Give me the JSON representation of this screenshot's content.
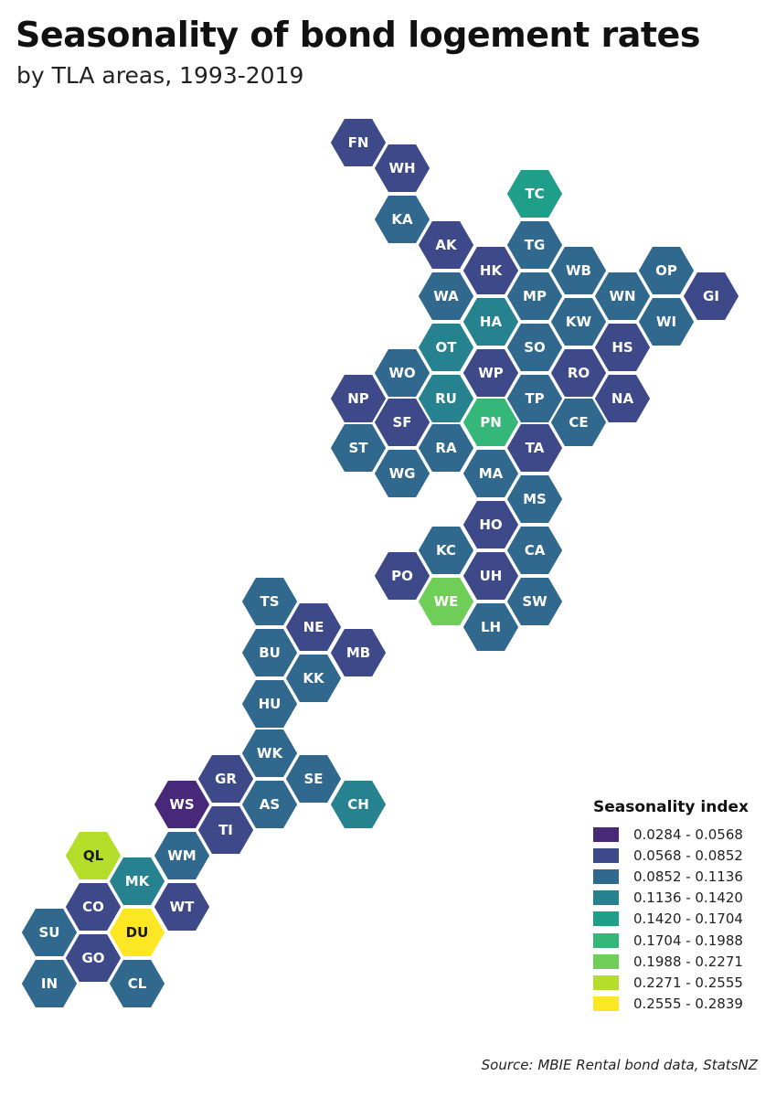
{
  "title": "Seasonality of bond logement rates",
  "subtitle": "by TLA areas, 1993-2019",
  "legend": {
    "title": "Seasonality index",
    "bins": [
      {
        "label": "0.0284 - 0.0568",
        "color": "#482878"
      },
      {
        "label": "0.0568 - 0.0852",
        "color": "#3e4989"
      },
      {
        "label": "0.0852 - 0.1136",
        "color": "#31688e"
      },
      {
        "label": "0.1136 - 0.1420",
        "color": "#26828e"
      },
      {
        "label": "0.1420 - 0.1704",
        "color": "#1f9e89"
      },
      {
        "label": "0.1704 - 0.1988",
        "color": "#35b779"
      },
      {
        "label": "0.1988 - 0.2271",
        "color": "#6ece58"
      },
      {
        "label": "0.2271 - 0.2555",
        "color": "#b5de2b"
      },
      {
        "label": "0.2555 - 0.2839",
        "color": "#fde725"
      }
    ]
  },
  "areas": [
    {
      "code": "FN",
      "bin": 1
    },
    {
      "code": "WH",
      "bin": 1
    },
    {
      "code": "KA",
      "bin": 2
    },
    {
      "code": "TC",
      "bin": 4
    },
    {
      "code": "AK",
      "bin": 1
    },
    {
      "code": "TG",
      "bin": 2
    },
    {
      "code": "HK",
      "bin": 1
    },
    {
      "code": "WB",
      "bin": 2
    },
    {
      "code": "OP",
      "bin": 2
    },
    {
      "code": "WA",
      "bin": 2
    },
    {
      "code": "MP",
      "bin": 2
    },
    {
      "code": "WN",
      "bin": 2
    },
    {
      "code": "GI",
      "bin": 1
    },
    {
      "code": "HA",
      "bin": 3
    },
    {
      "code": "KW",
      "bin": 2
    },
    {
      "code": "WI",
      "bin": 2
    },
    {
      "code": "OT",
      "bin": 3
    },
    {
      "code": "SO",
      "bin": 2
    },
    {
      "code": "HS",
      "bin": 1
    },
    {
      "code": "WO",
      "bin": 2
    },
    {
      "code": "WP",
      "bin": 1
    },
    {
      "code": "RO",
      "bin": 1
    },
    {
      "code": "NP",
      "bin": 1
    },
    {
      "code": "RU",
      "bin": 3
    },
    {
      "code": "TP",
      "bin": 2
    },
    {
      "code": "NA",
      "bin": 1
    },
    {
      "code": "SF",
      "bin": 1
    },
    {
      "code": "PN",
      "bin": 5
    },
    {
      "code": "CE",
      "bin": 2
    },
    {
      "code": "ST",
      "bin": 2
    },
    {
      "code": "RA",
      "bin": 2
    },
    {
      "code": "TA",
      "bin": 1
    },
    {
      "code": "WG",
      "bin": 2
    },
    {
      "code": "MA",
      "bin": 2
    },
    {
      "code": "MS",
      "bin": 2
    },
    {
      "code": "HO",
      "bin": 1
    },
    {
      "code": "KC",
      "bin": 2
    },
    {
      "code": "CA",
      "bin": 2
    },
    {
      "code": "PO",
      "bin": 1
    },
    {
      "code": "UH",
      "bin": 1
    },
    {
      "code": "WE",
      "bin": 6
    },
    {
      "code": "SW",
      "bin": 2
    },
    {
      "code": "LH",
      "bin": 2
    },
    {
      "code": "TS",
      "bin": 2
    },
    {
      "code": "NE",
      "bin": 1
    },
    {
      "code": "BU",
      "bin": 2
    },
    {
      "code": "MB",
      "bin": 1
    },
    {
      "code": "KK",
      "bin": 2
    },
    {
      "code": "HU",
      "bin": 2
    },
    {
      "code": "WK",
      "bin": 2
    },
    {
      "code": "GR",
      "bin": 1
    },
    {
      "code": "SE",
      "bin": 2
    },
    {
      "code": "WS",
      "bin": 0
    },
    {
      "code": "AS",
      "bin": 2
    },
    {
      "code": "CH",
      "bin": 3
    },
    {
      "code": "TI",
      "bin": 1
    },
    {
      "code": "QL",
      "bin": 7
    },
    {
      "code": "WM",
      "bin": 2
    },
    {
      "code": "MK",
      "bin": 3
    },
    {
      "code": "CO",
      "bin": 1
    },
    {
      "code": "WT",
      "bin": 1
    },
    {
      "code": "SU",
      "bin": 2
    },
    {
      "code": "DU",
      "bin": 8
    },
    {
      "code": "GO",
      "bin": 1
    },
    {
      "code": "IN",
      "bin": 2
    },
    {
      "code": "CL",
      "bin": 2
    }
  ],
  "source": "Source: MBIE Rental bond data, StatsNZ"
}
